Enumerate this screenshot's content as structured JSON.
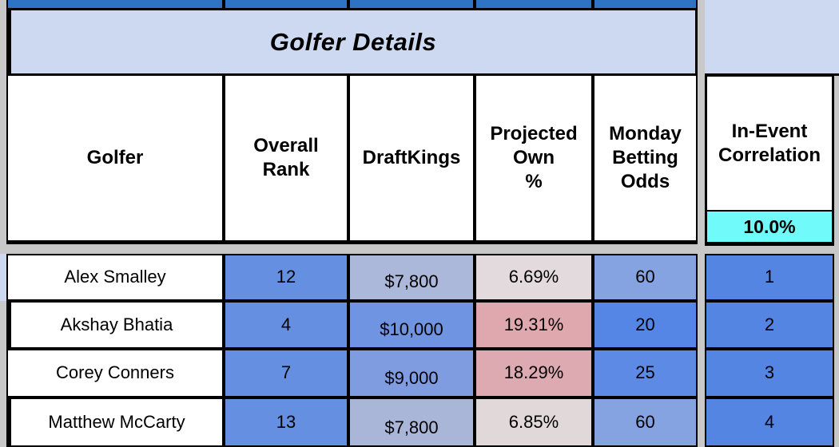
{
  "title_band": {
    "label": "Golfer Details"
  },
  "columns": [
    {
      "id": "golfer",
      "lines": [
        "Golfer"
      ]
    },
    {
      "id": "overall-rank",
      "lines": [
        "Overall",
        "Rank"
      ]
    },
    {
      "id": "draftkings",
      "lines": [
        "DraftKings"
      ]
    },
    {
      "id": "projected-own-pct",
      "lines": [
        "Projected",
        "Own",
        "%"
      ]
    },
    {
      "id": "monday-betting-odds",
      "lines": [
        "Monday",
        "Betting",
        "Odds"
      ]
    }
  ],
  "correlation_column": {
    "header_lines": [
      "In-Event",
      "Correlation"
    ],
    "value": "10.0%",
    "value_bg": "#70fafa",
    "cell_bg": "#5585e3"
  },
  "rows": [
    {
      "golfer": "Alex Smalley",
      "overall_rank": "12",
      "rank_bg": "#6590e2",
      "draftkings": "$7,800",
      "dk_bg": "#abb8d9",
      "projected_own": "6.69%",
      "own_bg": "#e2dadc",
      "betting_odds": "60",
      "odds_bg": "#85a2e1",
      "correlation": "1"
    },
    {
      "golfer": "Akshay Bhatia",
      "overall_rank": "4",
      "rank_bg": "#6590e2",
      "draftkings": "$10,000",
      "dk_bg": "#6f94e2",
      "projected_own": "19.31%",
      "own_bg": "#dea8ae",
      "betting_odds": "20",
      "odds_bg": "#5586e6",
      "correlation": "2"
    },
    {
      "golfer": "Corey Conners",
      "overall_rank": "7",
      "rank_bg": "#6590e2",
      "draftkings": "$9,000",
      "dk_bg": "#7f9ce0",
      "projected_own": "18.29%",
      "own_bg": "#dcaab0",
      "betting_odds": "25",
      "odds_bg": "#5c8ae5",
      "correlation": "3"
    },
    {
      "golfer": "Matthew McCarty",
      "overall_rank": "13",
      "rank_bg": "#6590e2",
      "draftkings": "$7,800",
      "dk_bg": "#a9b6d8",
      "projected_own": "6.85%",
      "own_bg": "#e0d8d9",
      "betting_odds": "60",
      "odds_bg": "#85a2e1",
      "correlation": "4"
    }
  ],
  "colors": {
    "top_strip_blue": "#2e73c4",
    "band_periwinkle": "#ccd9f1",
    "header_white": "#ffffff",
    "page_gray": "#c8c8c8",
    "row_white": "#ffffff"
  }
}
